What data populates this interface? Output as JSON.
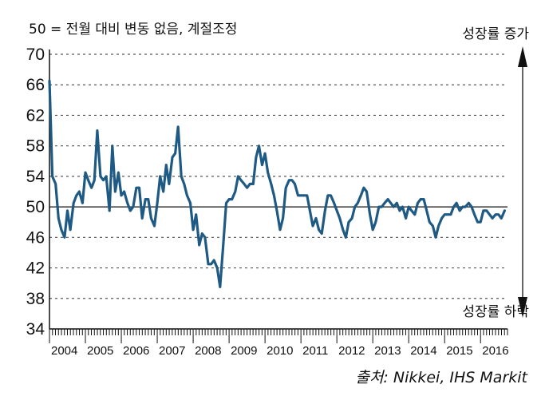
{
  "header": {
    "note": "50 = 전월 대비 변동 없음, 계절조정",
    "up_label": "성장률 증가",
    "down_label": "성장률 하락"
  },
  "footer": {
    "source": "출처: Nikkei, IHS Markit"
  },
  "colors": {
    "line": "#1f5a85",
    "grid": "#555555",
    "axis": "#111111"
  },
  "chart_data": {
    "type": "line",
    "title": "",
    "xlabel": "",
    "ylabel": "",
    "ylim": [
      34,
      70
    ],
    "yticks": [
      34,
      38,
      42,
      46,
      50,
      54,
      58,
      62,
      66,
      70
    ],
    "xlim": [
      2004.0,
      2016.75
    ],
    "xtick_labels": [
      "2004",
      "2005",
      "2006",
      "2007",
      "2008",
      "2009",
      "2010",
      "2011",
      "2012",
      "2013",
      "2014",
      "2015",
      "2016"
    ],
    "reference_line": 50,
    "grid": "horizontal dashed",
    "series": [
      {
        "points": [
          [
            2004.0,
            66.5
          ],
          [
            2004.08,
            54.0
          ],
          [
            2004.17,
            53.0
          ],
          [
            2004.25,
            48.5
          ],
          [
            2004.33,
            47.0
          ],
          [
            2004.42,
            46.0
          ],
          [
            2004.5,
            49.5
          ],
          [
            2004.58,
            47.0
          ],
          [
            2004.67,
            50.5
          ],
          [
            2004.75,
            51.5
          ],
          [
            2004.83,
            52.0
          ],
          [
            2004.92,
            50.5
          ],
          [
            2005.0,
            54.5
          ],
          [
            2005.08,
            53.5
          ],
          [
            2005.17,
            52.5
          ],
          [
            2005.25,
            53.5
          ],
          [
            2005.33,
            60.0
          ],
          [
            2005.42,
            54.0
          ],
          [
            2005.5,
            53.5
          ],
          [
            2005.58,
            54.0
          ],
          [
            2005.67,
            49.5
          ],
          [
            2005.75,
            58.0
          ],
          [
            2005.83,
            52.0
          ],
          [
            2005.92,
            54.5
          ],
          [
            2006.0,
            51.5
          ],
          [
            2006.08,
            52.0
          ],
          [
            2006.17,
            50.5
          ],
          [
            2006.25,
            49.5
          ],
          [
            2006.33,
            50.0
          ],
          [
            2006.42,
            52.5
          ],
          [
            2006.5,
            52.5
          ],
          [
            2006.58,
            48.5
          ],
          [
            2006.67,
            51.0
          ],
          [
            2006.75,
            51.0
          ],
          [
            2006.83,
            48.5
          ],
          [
            2006.92,
            47.5
          ],
          [
            2007.0,
            50.5
          ],
          [
            2007.08,
            54.0
          ],
          [
            2007.17,
            52.0
          ],
          [
            2007.25,
            55.5
          ],
          [
            2007.33,
            53.0
          ],
          [
            2007.42,
            56.5
          ],
          [
            2007.5,
            57.0
          ],
          [
            2007.58,
            60.5
          ],
          [
            2007.67,
            54.0
          ],
          [
            2007.75,
            53.0
          ],
          [
            2007.83,
            51.5
          ],
          [
            2007.92,
            50.5
          ],
          [
            2008.0,
            47.0
          ],
          [
            2008.08,
            49.0
          ],
          [
            2008.17,
            45.0
          ],
          [
            2008.25,
            46.5
          ],
          [
            2008.33,
            46.0
          ],
          [
            2008.42,
            42.5
          ],
          [
            2008.5,
            42.5
          ],
          [
            2008.58,
            43.0
          ],
          [
            2008.67,
            42.0
          ],
          [
            2008.75,
            39.5
          ],
          [
            2008.83,
            44.5
          ],
          [
            2008.92,
            50.5
          ],
          [
            2009.0,
            51.0
          ],
          [
            2009.08,
            51.0
          ],
          [
            2009.17,
            52.0
          ],
          [
            2009.25,
            54.0
          ],
          [
            2009.33,
            53.5
          ],
          [
            2009.42,
            53.0
          ],
          [
            2009.5,
            52.5
          ],
          [
            2009.58,
            53.0
          ],
          [
            2009.67,
            53.0
          ],
          [
            2009.75,
            56.5
          ],
          [
            2009.83,
            58.0
          ],
          [
            2009.92,
            55.5
          ],
          [
            2010.0,
            57.0
          ],
          [
            2010.08,
            54.5
          ],
          [
            2010.17,
            53.0
          ],
          [
            2010.25,
            51.5
          ],
          [
            2010.33,
            49.5
          ],
          [
            2010.42,
            47.0
          ],
          [
            2010.5,
            48.5
          ],
          [
            2010.58,
            52.5
          ],
          [
            2010.67,
            53.5
          ],
          [
            2010.75,
            53.5
          ],
          [
            2010.83,
            53.0
          ],
          [
            2010.92,
            51.5
          ],
          [
            2011.0,
            51.5
          ],
          [
            2011.08,
            51.5
          ],
          [
            2011.17,
            51.5
          ],
          [
            2011.25,
            49.5
          ],
          [
            2011.33,
            47.5
          ],
          [
            2011.42,
            48.5
          ],
          [
            2011.5,
            47.0
          ],
          [
            2011.58,
            46.5
          ],
          [
            2011.67,
            49.5
          ],
          [
            2011.75,
            51.5
          ],
          [
            2011.83,
            51.5
          ],
          [
            2011.92,
            50.5
          ],
          [
            2012.0,
            49.5
          ],
          [
            2012.08,
            48.5
          ],
          [
            2012.17,
            47.0
          ],
          [
            2012.25,
            46.0
          ],
          [
            2012.33,
            48.0
          ],
          [
            2012.42,
            48.5
          ],
          [
            2012.5,
            50.0
          ],
          [
            2012.58,
            50.5
          ],
          [
            2012.67,
            51.5
          ],
          [
            2012.75,
            52.5
          ],
          [
            2012.83,
            52.0
          ],
          [
            2012.92,
            49.0
          ],
          [
            2013.0,
            47.0
          ],
          [
            2013.08,
            48.0
          ],
          [
            2013.17,
            50.0
          ],
          [
            2013.25,
            50.0
          ],
          [
            2013.33,
            50.5
          ],
          [
            2013.42,
            51.0
          ],
          [
            2013.5,
            50.5
          ],
          [
            2013.58,
            50.0
          ],
          [
            2013.67,
            50.5
          ],
          [
            2013.75,
            49.5
          ],
          [
            2013.83,
            50.0
          ],
          [
            2013.92,
            48.5
          ],
          [
            2014.0,
            50.0
          ],
          [
            2014.08,
            49.5
          ],
          [
            2014.17,
            49.0
          ],
          [
            2014.25,
            50.5
          ],
          [
            2014.33,
            51.0
          ],
          [
            2014.42,
            51.0
          ],
          [
            2014.5,
            49.5
          ],
          [
            2014.58,
            48.0
          ],
          [
            2014.67,
            47.5
          ],
          [
            2014.75,
            46.0
          ],
          [
            2014.83,
            47.5
          ],
          [
            2014.92,
            48.5
          ],
          [
            2015.0,
            49.0
          ],
          [
            2015.08,
            49.0
          ],
          [
            2015.17,
            49.0
          ],
          [
            2015.25,
            50.0
          ],
          [
            2015.33,
            50.5
          ],
          [
            2015.42,
            49.5
          ],
          [
            2015.5,
            50.0
          ],
          [
            2015.58,
            50.0
          ],
          [
            2015.67,
            50.5
          ],
          [
            2015.75,
            50.0
          ],
          [
            2015.83,
            49.0
          ],
          [
            2015.92,
            48.0
          ],
          [
            2016.0,
            48.0
          ],
          [
            2016.08,
            49.5
          ],
          [
            2016.17,
            49.5
          ],
          [
            2016.25,
            49.0
          ],
          [
            2016.33,
            48.5
          ],
          [
            2016.42,
            49.0
          ],
          [
            2016.5,
            49.0
          ],
          [
            2016.58,
            48.5
          ],
          [
            2016.67,
            49.5
          ]
        ]
      }
    ]
  }
}
